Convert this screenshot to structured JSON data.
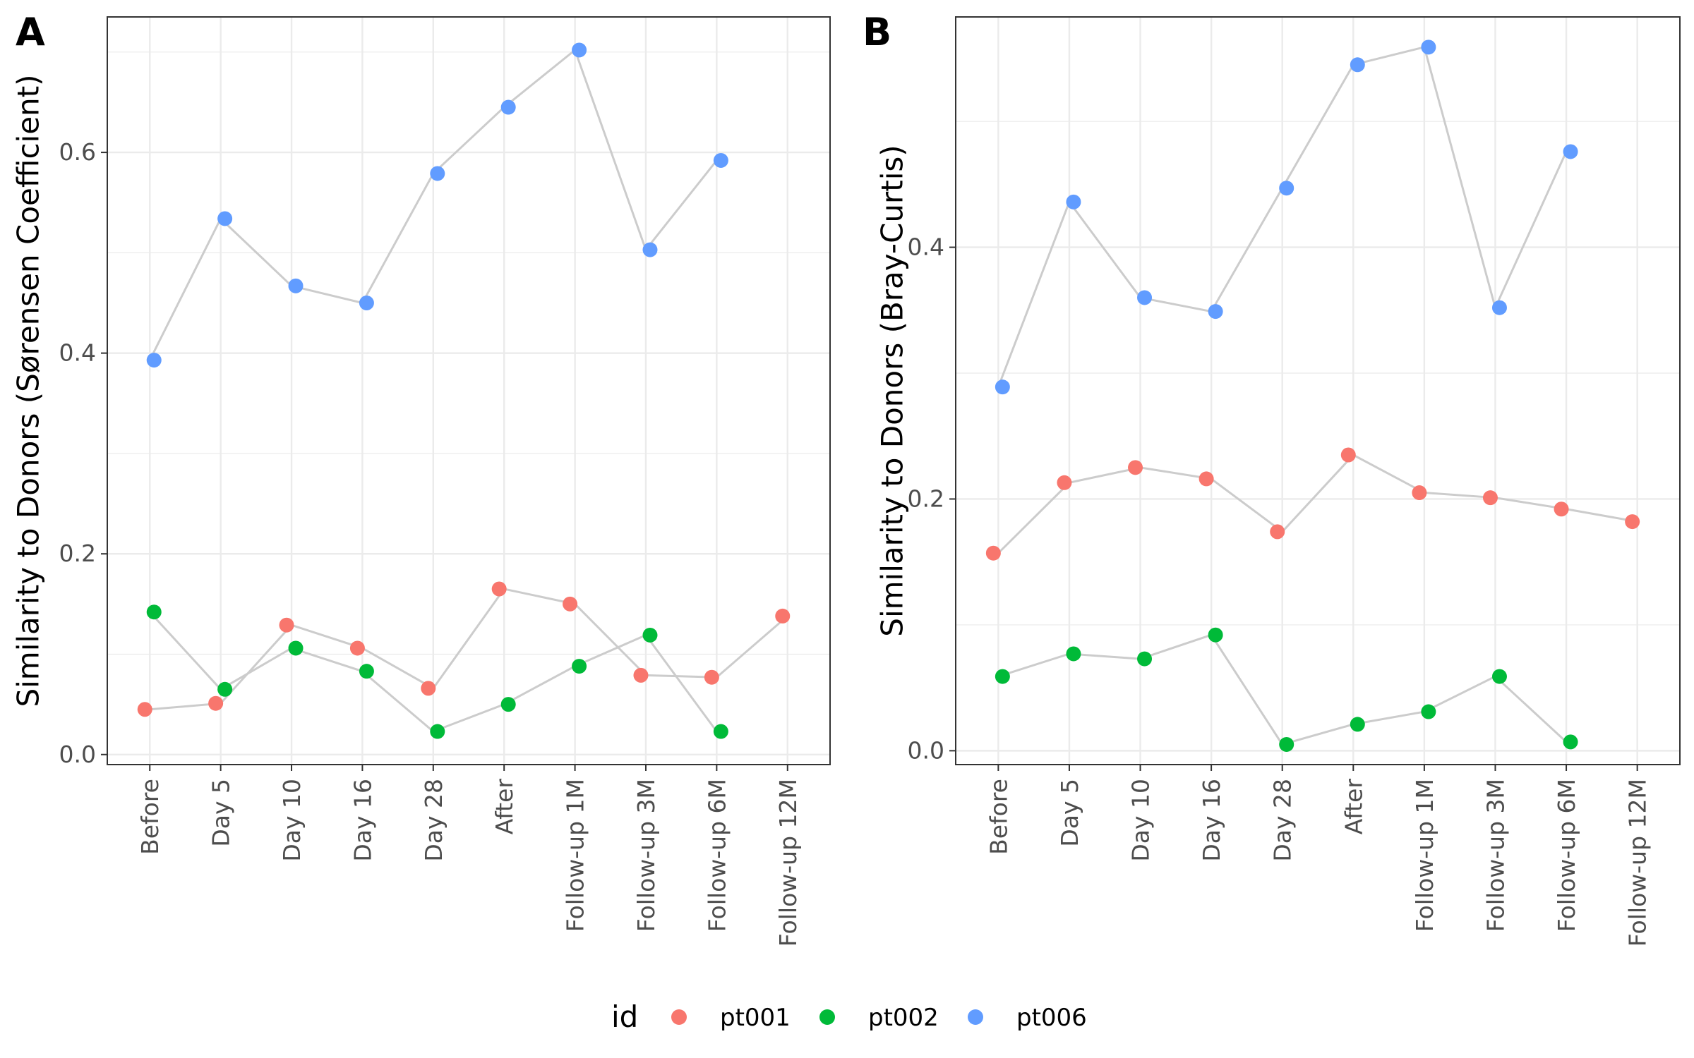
{
  "categories": [
    "Before",
    "Day 5",
    "Day 10",
    "Day 16",
    "Day 28",
    "After",
    "Follow-up 1M",
    "Follow-up 3M",
    "Follow-up 6M",
    "Follow-up 12M"
  ],
  "colors": {
    "pt001": "#F8766D",
    "pt002": "#00BA38",
    "pt006": "#619CFF",
    "line": "#cccccc",
    "grid": "#ebebeb",
    "frame": "#333333"
  },
  "legend": {
    "title": "id",
    "items": [
      {
        "label": "pt001",
        "color": "#F8766D"
      },
      {
        "label": "pt002",
        "color": "#00BA38"
      },
      {
        "label": "pt006",
        "color": "#619CFF"
      }
    ]
  },
  "chart_data": [
    {
      "type": "scatter",
      "panel_label": "A",
      "xlabel": "",
      "ylabel": "Similarity to Donors (Sørensen Coefficient)",
      "categories": [
        "Before",
        "Day 5",
        "Day 10",
        "Day 16",
        "Day 28",
        "After",
        "Follow-up 1M",
        "Follow-up 3M",
        "Follow-up 6M",
        "Follow-up 12M"
      ],
      "ylim": [
        -0.01,
        0.735
      ],
      "yticks": [
        0.0,
        0.2,
        0.4,
        0.6
      ],
      "ytick_labels": [
        "0.0",
        "0.2",
        "0.4",
        "0.6"
      ],
      "grid": true,
      "connecting_lines": true,
      "series": [
        {
          "name": "pt001",
          "color": "#F8766D",
          "values": [
            0.045,
            0.051,
            0.129,
            0.106,
            0.066,
            0.165,
            0.15,
            0.079,
            0.077,
            0.138
          ]
        },
        {
          "name": "pt002",
          "color": "#00BA38",
          "values": [
            0.142,
            0.065,
            0.106,
            0.083,
            0.023,
            0.05,
            0.088,
            0.119,
            0.023,
            null
          ]
        },
        {
          "name": "pt006",
          "color": "#619CFF",
          "values": [
            0.393,
            0.534,
            0.467,
            0.45,
            0.579,
            0.645,
            0.702,
            0.503,
            0.592,
            null
          ]
        }
      ]
    },
    {
      "type": "scatter",
      "panel_label": "B",
      "xlabel": "",
      "ylabel": "Similarity to Donors (Bray-Curtis)",
      "categories": [
        "Before",
        "Day 5",
        "Day 10",
        "Day 16",
        "Day 28",
        "After",
        "Follow-up 1M",
        "Follow-up 3M",
        "Follow-up 6M",
        "Follow-up 12M"
      ],
      "ylim": [
        -0.011,
        0.583
      ],
      "yticks": [
        0.0,
        0.2,
        0.4
      ],
      "ytick_labels": [
        "0.0",
        "0.2",
        "0.4"
      ],
      "grid": true,
      "connecting_lines": true,
      "series": [
        {
          "name": "pt001",
          "color": "#F8766D",
          "values": [
            0.157,
            0.213,
            0.225,
            0.216,
            0.174,
            0.235,
            0.205,
            0.201,
            0.192,
            0.182
          ]
        },
        {
          "name": "pt002",
          "color": "#00BA38",
          "values": [
            0.059,
            0.077,
            0.073,
            0.092,
            0.005,
            0.021,
            0.031,
            0.059,
            0.007,
            null
          ]
        },
        {
          "name": "pt006",
          "color": "#619CFF",
          "values": [
            0.289,
            0.436,
            0.36,
            0.349,
            0.447,
            0.545,
            0.559,
            0.352,
            0.476,
            null
          ]
        }
      ]
    }
  ]
}
